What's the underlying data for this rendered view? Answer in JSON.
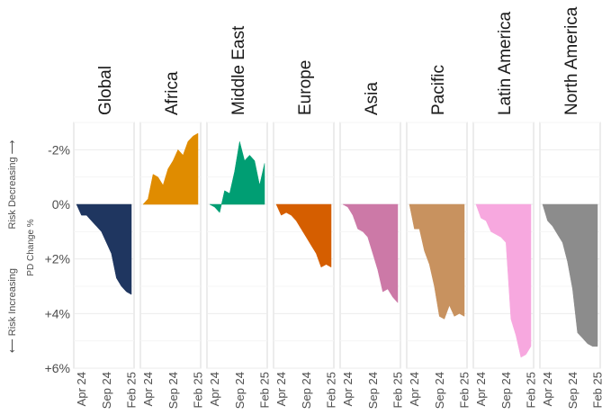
{
  "chart_data": {
    "type": "area",
    "side_labels": {
      "risk_decreasing": "Risk Decreasing ⟶",
      "risk_increasing": "⟵ Risk Increasing",
      "ylabel": "PD Change %"
    },
    "y_ticks": [
      "-2%",
      "0%",
      "+2%",
      "+4%",
      "+6%"
    ],
    "y_tick_values": [
      -2,
      0,
      2,
      4,
      6
    ],
    "ylim": [
      -3,
      6
    ],
    "y_axis_direction": "reversed (negative values at top)",
    "x_ticks": [
      "Apr 24",
      "Sep 24",
      "Feb 25"
    ],
    "x_tick_index": [
      1,
      6,
      11
    ],
    "x_count": 12,
    "grid": "horizontal",
    "legend": "none",
    "series": [
      {
        "name": "Global",
        "color": "#1f3660",
        "values": [
          0,
          0.4,
          0.4,
          0.6,
          0.8,
          1.0,
          1.4,
          1.8,
          2.7,
          3.0,
          3.2,
          3.3
        ]
      },
      {
        "name": "Africa",
        "color": "#e08c00",
        "values": [
          0,
          -0.2,
          -1.1,
          -1.0,
          -0.7,
          -1.3,
          -1.6,
          -2.0,
          -1.8,
          -2.3,
          -2.5,
          -2.6
        ]
      },
      {
        "name": "Middle East",
        "color": "#009e73",
        "values": [
          0,
          0.1,
          0.3,
          -0.5,
          -0.4,
          -1.2,
          -2.3,
          -1.6,
          -1.8,
          -1.6,
          -0.7,
          -1.5
        ]
      },
      {
        "name": "Europe",
        "color": "#d55e00",
        "values": [
          0,
          0.4,
          0.3,
          0.4,
          0.6,
          0.9,
          1.2,
          1.5,
          1.8,
          2.3,
          2.2,
          2.3
        ]
      },
      {
        "name": "Asia",
        "color": "#cc79a7",
        "values": [
          0,
          0.1,
          0.4,
          0.9,
          1.0,
          1.2,
          1.8,
          2.4,
          3.2,
          3.1,
          3.4,
          3.6
        ]
      },
      {
        "name": "Pacific",
        "color": "#c8925f",
        "values": [
          0,
          0.9,
          0.9,
          1.7,
          2.2,
          3.0,
          4.1,
          4.2,
          3.7,
          4.1,
          4.0,
          4.1
        ]
      },
      {
        "name": "Latin America",
        "color": "#f7a8df",
        "values": [
          0,
          0.5,
          0.6,
          1.0,
          1.1,
          1.2,
          1.4,
          4.2,
          4.8,
          5.6,
          5.5,
          5.2
        ]
      },
      {
        "name": "North America",
        "color": "#8c8c8c",
        "values": [
          0,
          0.6,
          0.8,
          1.1,
          1.4,
          2.1,
          3.1,
          4.7,
          4.9,
          5.1,
          5.2,
          5.2
        ]
      }
    ]
  }
}
